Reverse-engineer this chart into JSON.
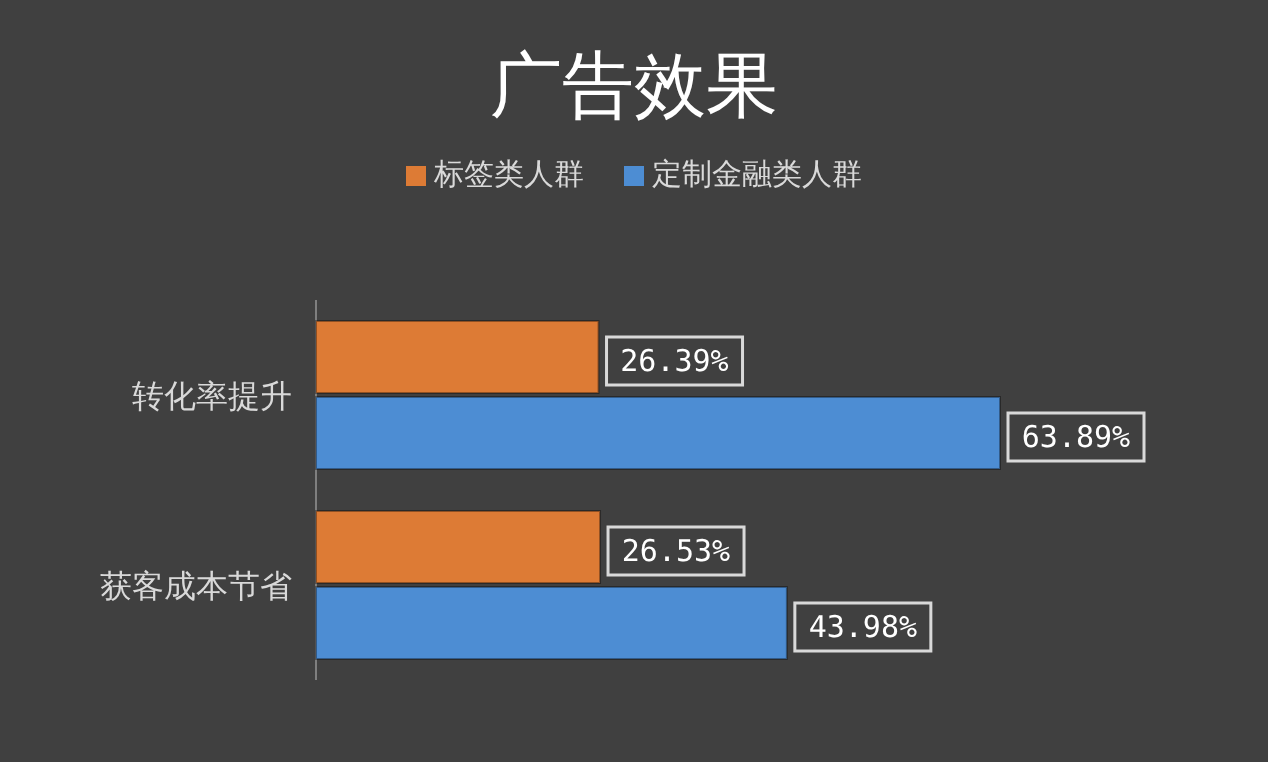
{
  "chart_data": {
    "type": "bar",
    "orientation": "horizontal",
    "title": "广告效果",
    "categories": [
      "转化率提升",
      "获客成本节省"
    ],
    "series": [
      {
        "name": "标签类人群",
        "color": "#dd7b35",
        "values": [
          26.39,
          26.53
        ],
        "value_labels": [
          "26.39%",
          "26.53%"
        ]
      },
      {
        "name": "定制金融类人群",
        "color": "#4d8dd3",
        "values": [
          63.89,
          43.98
        ],
        "value_labels": [
          "63.89%",
          "43.98%"
        ]
      }
    ],
    "legend": "top"
  }
}
